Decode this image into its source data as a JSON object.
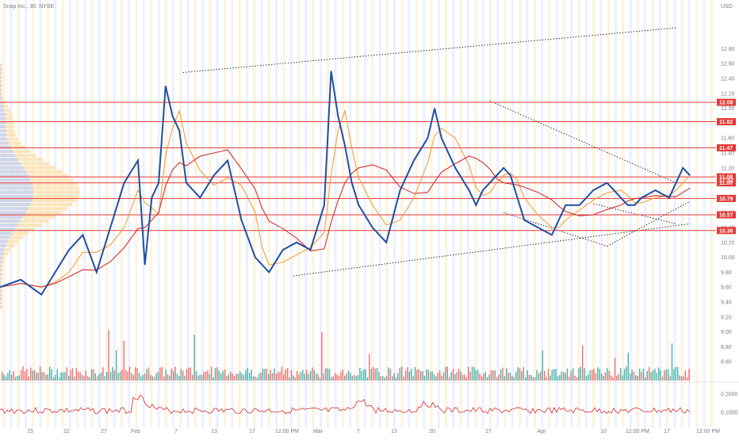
{
  "header": {
    "symbol_text": "Snap Inc., 30, NYSE"
  },
  "colors": {
    "band_orange": "#fde8c8",
    "band_blue": "#dfe6fb",
    "price_line": "#1f4fa3",
    "fast_ma": "#26a69a",
    "mid_ma": "#f2a03a",
    "slow_ma": "#d32f2f",
    "hline": "#e53935",
    "volume_up": "#26a69a",
    "volume_down": "#ef5350",
    "vp_orange": "#fde2b0",
    "vp_blue": "#c7d4f5",
    "osc": "#d32f2f"
  },
  "chart_data": {
    "type": "line",
    "title": "",
    "currency": "USD",
    "ylim": [
      8.4,
      13.4
    ],
    "y_ticks": [
      "12.80",
      "12.60",
      "12.40",
      "12.20",
      "12.00",
      "11.80",
      "11.60",
      "11.40",
      "11.20",
      "11.00",
      "10.80",
      "10.60",
      "10.40",
      "10.20",
      "10.00",
      "9.80",
      "9.60",
      "9.40",
      "9.20",
      "9.00",
      "8.80",
      "8.60"
    ],
    "x_ticks": [
      "15",
      "22",
      "27",
      "Feb",
      "7",
      "13",
      "17",
      "12:00 PM",
      "Mar",
      "7",
      "13",
      "20",
      "27",
      "Apr",
      "10",
      "12:00 PM",
      "17",
      "12:00 PM"
    ],
    "price_levels": [
      {
        "label": "12.08",
        "value": 12.08
      },
      {
        "label": "11.82",
        "value": 11.82
      },
      {
        "label": "11.47",
        "value": 11.47
      },
      {
        "label": "11.08",
        "value": 11.08
      },
      {
        "label": "11.00",
        "value": 11.0
      },
      {
        "label": "10.79",
        "value": 10.79
      },
      {
        "label": "10.57",
        "value": 10.57
      },
      {
        "label": "10.36",
        "value": 10.36
      }
    ],
    "countdown_label": "17:52",
    "oscillator_ticks": [
      "0.2000",
      "0.1000"
    ],
    "series": [
      {
        "role": "close",
        "x": [
          0,
          0.03,
          0.06,
          0.08,
          0.1,
          0.12,
          0.14,
          0.16,
          0.18,
          0.2,
          0.21,
          0.22,
          0.23,
          0.24,
          0.25,
          0.26,
          0.27,
          0.29,
          0.31,
          0.33,
          0.35,
          0.37,
          0.38,
          0.39,
          0.41,
          0.43,
          0.45,
          0.47,
          0.48,
          0.49,
          0.5,
          0.51,
          0.52,
          0.54,
          0.56,
          0.58,
          0.6,
          0.62,
          0.63,
          0.64,
          0.66,
          0.68,
          0.69,
          0.7,
          0.71,
          0.72,
          0.73,
          0.74,
          0.75,
          0.76,
          0.78,
          0.8,
          0.81,
          0.82,
          0.84,
          0.86,
          0.88,
          0.9,
          0.91,
          0.92,
          0.93,
          0.95,
          0.97,
          0.98,
          0.99,
          1.0
        ],
        "values": [
          9.6,
          9.7,
          9.5,
          9.8,
          10.1,
          10.3,
          9.8,
          10.4,
          11.0,
          11.3,
          9.9,
          10.8,
          11.0,
          12.3,
          11.9,
          11.7,
          11.0,
          10.8,
          11.1,
          11.3,
          10.5,
          10.0,
          9.9,
          9.8,
          10.1,
          10.2,
          10.1,
          10.7,
          12.5,
          11.9,
          11.5,
          11.0,
          10.7,
          10.4,
          10.2,
          10.9,
          11.3,
          11.6,
          12.0,
          11.6,
          11.2,
          10.9,
          10.7,
          10.9,
          11.0,
          11.1,
          11.2,
          11.1,
          10.8,
          10.5,
          10.4,
          10.3,
          10.5,
          10.7,
          10.7,
          10.9,
          11.0,
          10.8,
          10.7,
          10.7,
          10.8,
          10.9,
          10.8,
          11.0,
          11.2,
          11.1
        ]
      }
    ]
  }
}
